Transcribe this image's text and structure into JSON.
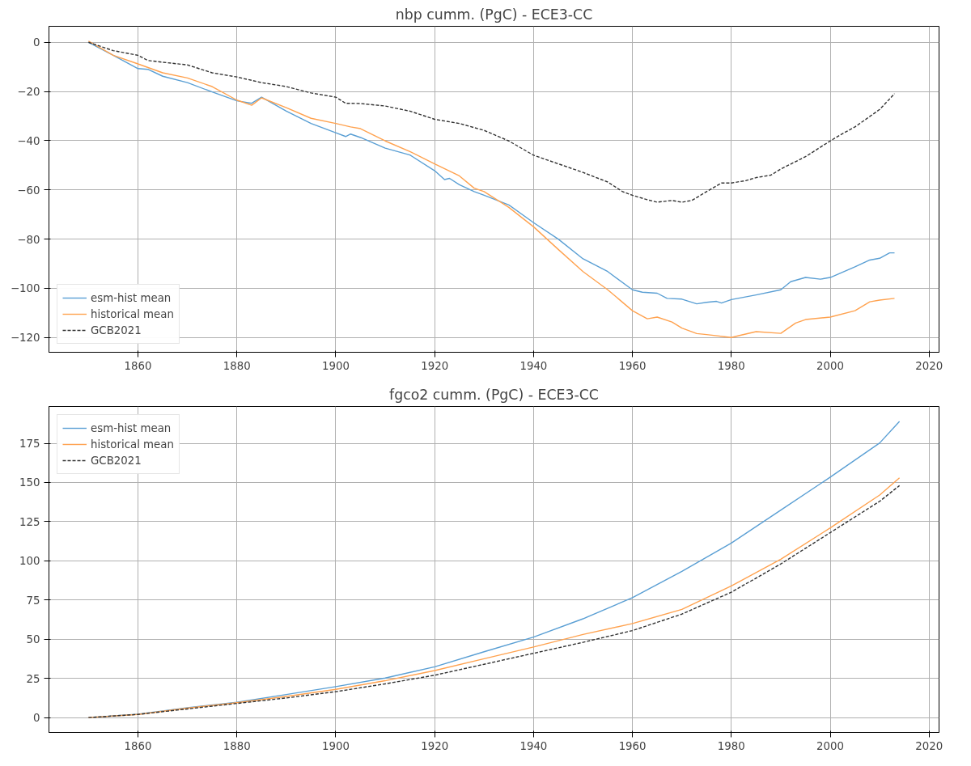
{
  "chart_data": [
    {
      "type": "line",
      "title": "nbp cumm. (PgC) - ECE3-CC",
      "xlim": [
        1842,
        2022
      ],
      "ylim": [
        -126,
        6.5
      ],
      "xticks": [
        1860,
        1880,
        1900,
        1920,
        1940,
        1960,
        1980,
        2000,
        2020
      ],
      "yticks": [
        -120,
        -100,
        -80,
        -60,
        -40,
        -20,
        0
      ],
      "grid": true,
      "legend": "bottom left",
      "series": [
        {
          "name": "esm-hist mean",
          "color": "#5a9fd4",
          "line_style": "solid",
          "x": [
            1850,
            1855,
            1860,
            1862,
            1865,
            1870,
            1875,
            1880,
            1883,
            1885,
            1890,
            1895,
            1900,
            1902,
            1903,
            1905,
            1910,
            1915,
            1920,
            1922,
            1923,
            1925,
            1928,
            1930,
            1935,
            1940,
            1945,
            1950,
            1955,
            1960,
            1962,
            1965,
            1967,
            1970,
            1973,
            1975,
            1977,
            1978,
            1980,
            1985,
            1990,
            1992,
            1995,
            1998,
            2000,
            2005,
            2008,
            2010,
            2012,
            2013
          ],
          "values": [
            0,
            -5.3,
            -10.7,
            -11,
            -13.8,
            -16.4,
            -20.2,
            -23.8,
            -24.8,
            -22.3,
            -28,
            -33,
            -36.8,
            -38.3,
            -37.3,
            -38.7,
            -43,
            -45.8,
            -52.2,
            -55.8,
            -55.3,
            -57.9,
            -60.7,
            -62.2,
            -66.1,
            -73.3,
            -80,
            -88,
            -93.2,
            -100.6,
            -101.6,
            -102,
            -104.1,
            -104.4,
            -106.3,
            -105.7,
            -105.3,
            -106,
            -104.6,
            -102.7,
            -100.6,
            -97.3,
            -95.6,
            -96.3,
            -95.6,
            -91.3,
            -88.5,
            -87.8,
            -85.6,
            -85.6
          ]
        },
        {
          "name": "historical mean",
          "color": "#ffa24f",
          "line_style": "solid",
          "x": [
            1850,
            1855,
            1860,
            1865,
            1870,
            1875,
            1880,
            1883,
            1885,
            1890,
            1895,
            1900,
            1903,
            1905,
            1910,
            1915,
            1920,
            1925,
            1928,
            1930,
            1935,
            1940,
            1945,
            1950,
            1955,
            1960,
            1963,
            1965,
            1968,
            1970,
            1973,
            1975,
            1980,
            1982,
            1985,
            1990,
            1993,
            1995,
            2000,
            2005,
            2008,
            2010,
            2013
          ],
          "values": [
            0.5,
            -5.3,
            -8.8,
            -12.4,
            -14.5,
            -18,
            -23.5,
            -25.6,
            -22.6,
            -26.6,
            -30.9,
            -33,
            -34.4,
            -35.1,
            -40.1,
            -44.4,
            -49.4,
            -54.3,
            -59.3,
            -60.7,
            -67.1,
            -75,
            -84.2,
            -93.2,
            -100.6,
            -109.1,
            -112.4,
            -111.7,
            -113.7,
            -116.2,
            -118.4,
            -118.8,
            -120,
            -119,
            -117.6,
            -118.3,
            -114.1,
            -112.7,
            -111.7,
            -109.1,
            -105.5,
            -104.8,
            -104.1
          ]
        },
        {
          "name": "GCB2021",
          "color": "#333333",
          "line_style": "dashed",
          "x": [
            1850,
            1855,
            1860,
            1862,
            1865,
            1870,
            1875,
            1880,
            1885,
            1890,
            1895,
            1900,
            1902,
            1905,
            1910,
            1915,
            1920,
            1925,
            1930,
            1935,
            1940,
            1945,
            1950,
            1955,
            1958,
            1960,
            1963,
            1965,
            1968,
            1970,
            1972,
            1975,
            1978,
            1980,
            1983,
            1985,
            1988,
            1990,
            1995,
            2000,
            2002,
            2005,
            2010,
            2013
          ],
          "values": [
            0,
            -3.4,
            -5.3,
            -7.4,
            -8.1,
            -9.2,
            -12.4,
            -14.1,
            -16.4,
            -18,
            -20.6,
            -22.3,
            -24.8,
            -24.9,
            -25.9,
            -28,
            -31.3,
            -33,
            -35.8,
            -40.1,
            -45.9,
            -49.4,
            -52.9,
            -56.8,
            -60.7,
            -62.2,
            -64,
            -65,
            -64.3,
            -65,
            -64.3,
            -60.7,
            -57.2,
            -57.2,
            -56.2,
            -55,
            -54,
            -51.5,
            -46.5,
            -40.1,
            -37.7,
            -34.4,
            -27.3,
            -20.9
          ]
        }
      ]
    },
    {
      "type": "line",
      "title": "fgco2 cumm. (PgC) - ECE3-CC",
      "xlim": [
        1842,
        2022
      ],
      "ylim": [
        -9.5,
        198.5
      ],
      "xticks": [
        1860,
        1880,
        1900,
        1920,
        1940,
        1960,
        1980,
        2000,
        2020
      ],
      "yticks": [
        0,
        25,
        50,
        75,
        100,
        125,
        150,
        175
      ],
      "grid": true,
      "legend": "top left",
      "series": [
        {
          "name": "esm-hist mean",
          "color": "#5a9fd4",
          "line_style": "solid",
          "x": [
            1850,
            1860,
            1870,
            1880,
            1890,
            1900,
            1910,
            1920,
            1930,
            1940,
            1950,
            1960,
            1970,
            1980,
            1990,
            2000,
            2010,
            2014
          ],
          "values": [
            0,
            2.1,
            6.3,
            9.7,
            14.7,
            19.7,
            25.2,
            32.4,
            42,
            51.3,
            63,
            76.5,
            93.3,
            111.3,
            132.4,
            153.4,
            175.2,
            189
          ]
        },
        {
          "name": "historical mean",
          "color": "#ffa24f",
          "line_style": "solid",
          "x": [
            1850,
            1860,
            1870,
            1880,
            1890,
            1900,
            1910,
            1920,
            1930,
            1940,
            1950,
            1960,
            1970,
            1980,
            1990,
            2000,
            2010,
            2014
          ],
          "values": [
            0,
            2,
            6,
            9.5,
            13.5,
            18,
            23.5,
            30,
            37.5,
            45,
            53,
            60,
            69,
            84,
            101,
            121,
            142,
            153
          ]
        },
        {
          "name": "GCB2021",
          "color": "#333333",
          "line_style": "dashed",
          "x": [
            1850,
            1860,
            1870,
            1880,
            1890,
            1900,
            1910,
            1920,
            1930,
            1940,
            1950,
            1960,
            1970,
            1980,
            1990,
            2000,
            2010,
            2014
          ],
          "values": [
            0,
            2,
            5.5,
            9,
            12.5,
            16.5,
            21.5,
            27,
            34,
            41,
            48,
            55.5,
            66,
            80,
            98,
            118,
            138,
            148
          ]
        }
      ]
    }
  ]
}
